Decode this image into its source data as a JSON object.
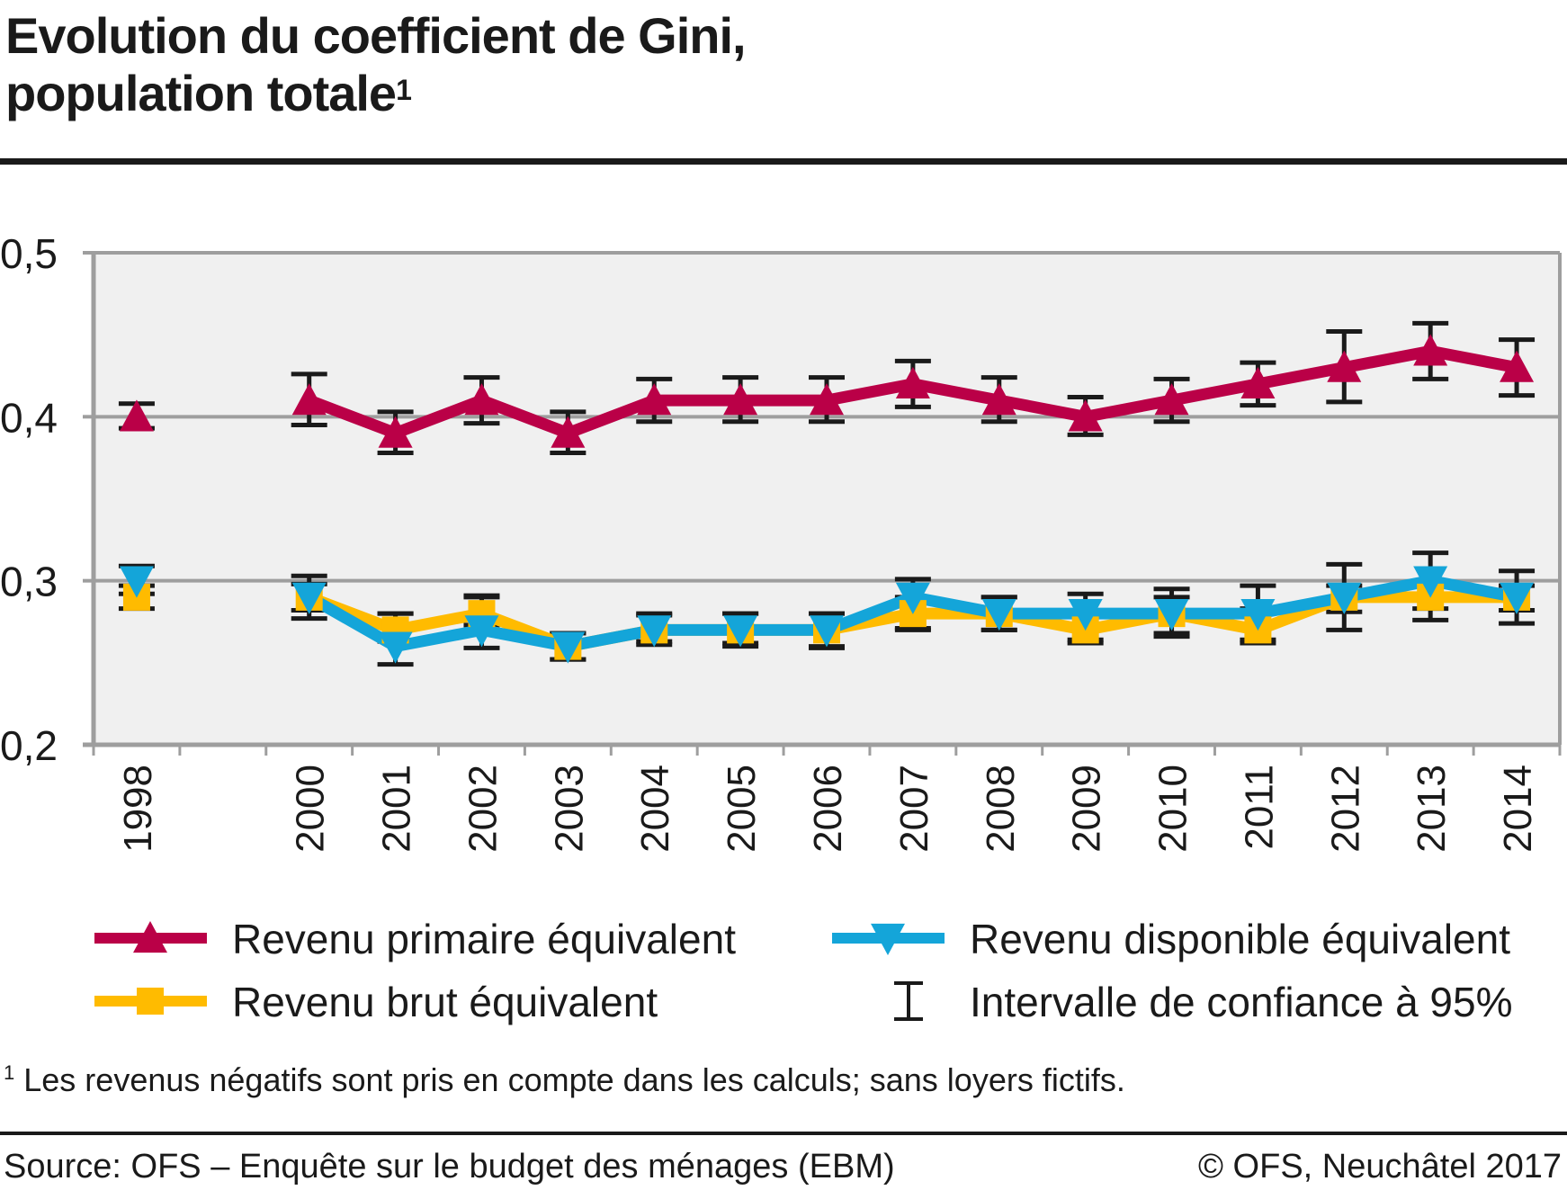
{
  "header": {
    "title_line1": "Evolution du coefficient de Gini,",
    "title_line2": "population totale",
    "title_footnote_mark": "1"
  },
  "chart_data": {
    "type": "line",
    "title": "Evolution du coefficient de Gini, population totale",
    "xlabel": "",
    "ylabel": "",
    "categories": [
      "1998",
      "",
      "2000",
      "2001",
      "2002",
      "2003",
      "2004",
      "2005",
      "2006",
      "2007",
      "2008",
      "2009",
      "2010",
      "2011",
      "2012",
      "2013",
      "2014"
    ],
    "ylim": [
      0.2,
      0.5
    ],
    "yticks": [
      0.2,
      0.3,
      0.4,
      0.5
    ],
    "ytick_labels": [
      "0,2",
      "0,3",
      "0,4",
      "0,5"
    ],
    "grid": true,
    "legend_position": "bottom",
    "series": [
      {
        "name": "Revenu primaire équivalent",
        "color": "#BA0047",
        "marker": "triangle-up",
        "values": [
          0.4,
          null,
          0.41,
          0.39,
          0.41,
          0.39,
          0.41,
          0.41,
          0.41,
          0.42,
          0.41,
          0.4,
          0.41,
          0.42,
          0.43,
          0.44,
          0.43
        ],
        "ci_low": [
          0.393,
          null,
          0.395,
          0.378,
          0.396,
          0.378,
          0.397,
          0.397,
          0.397,
          0.406,
          0.397,
          0.389,
          0.397,
          0.407,
          0.409,
          0.423,
          0.413
        ],
        "ci_high": [
          0.408,
          null,
          0.426,
          0.403,
          0.424,
          0.403,
          0.423,
          0.424,
          0.424,
          0.434,
          0.424,
          0.412,
          0.423,
          0.433,
          0.452,
          0.457,
          0.447
        ],
        "connect_from_index": 2
      },
      {
        "name": "Revenu brut équivalent",
        "color": "#FFBB00",
        "marker": "square",
        "values": [
          0.29,
          null,
          0.29,
          0.27,
          0.28,
          0.26,
          0.27,
          0.27,
          0.27,
          0.28,
          0.28,
          0.27,
          0.28,
          0.27,
          0.29,
          0.29,
          0.29
        ],
        "ci_low": [
          0.283,
          null,
          0.282,
          0.263,
          0.273,
          0.252,
          0.263,
          0.262,
          0.259,
          0.271,
          0.27,
          0.262,
          0.268,
          0.262,
          0.281,
          0.283,
          0.282
        ],
        "ci_high": [
          0.297,
          null,
          0.298,
          0.28,
          0.29,
          0.268,
          0.28,
          0.28,
          0.28,
          0.29,
          0.29,
          0.282,
          0.29,
          0.283,
          0.297,
          0.298,
          0.297
        ],
        "connect_from_index": 2
      },
      {
        "name": "Revenu disponible équivalent",
        "color": "#14A5D9",
        "marker": "triangle-down",
        "values": [
          0.3,
          null,
          0.29,
          0.26,
          0.27,
          0.26,
          0.27,
          0.27,
          0.27,
          0.29,
          0.28,
          0.28,
          0.28,
          0.28,
          0.29,
          0.3,
          0.29
        ],
        "ci_low": [
          0.292,
          null,
          0.277,
          0.249,
          0.259,
          0.252,
          0.261,
          0.26,
          0.26,
          0.27,
          0.27,
          0.264,
          0.266,
          0.264,
          0.27,
          0.276,
          0.274
        ],
        "ci_high": [
          0.309,
          null,
          0.303,
          0.28,
          0.291,
          0.268,
          0.279,
          0.28,
          0.28,
          0.301,
          0.29,
          0.292,
          0.295,
          0.297,
          0.31,
          0.317,
          0.306
        ],
        "connect_from_index": 2
      }
    ],
    "annotations": [
      "Intervalle de confiance à 95%"
    ]
  },
  "legend": {
    "items": [
      {
        "label": "Revenu primaire équivalent",
        "color": "#BA0047",
        "marker": "triangle-up"
      },
      {
        "label": "Revenu disponible équivalent",
        "color": "#14A5D9",
        "marker": "triangle-down"
      },
      {
        "label": "Revenu brut équivalent",
        "color": "#FFBB00",
        "marker": "square"
      },
      {
        "label": "Intervalle de confiance à 95%",
        "color": "#1a1a1a",
        "marker": "error-bar"
      }
    ]
  },
  "footer": {
    "note_mark": "1",
    "note": "Les revenus négatifs sont pris en compte dans les calculs; sans loyers fictifs.",
    "source": "Source: OFS – Enquête sur le budget des ménages (EBM)",
    "copyright": "© OFS, Neuchâtel 2017"
  },
  "colors": {
    "plot_background": "#F0F0F0",
    "axis": "#9E9E9E",
    "gridline": "#9E9E9E",
    "error_bar": "#1a1a1a"
  }
}
